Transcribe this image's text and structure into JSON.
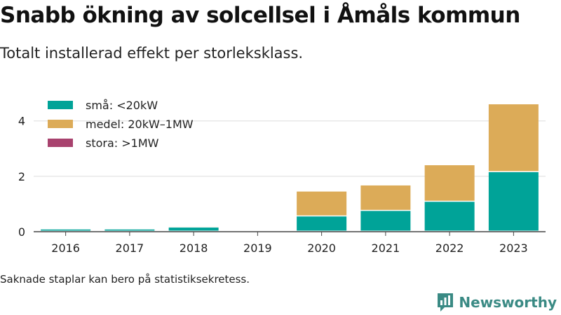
{
  "header": {
    "title": "Snabb ökning av solcellsel i Åmåls kommun",
    "subtitle": "Totalt installerad effekt per storleksklass."
  },
  "footer": {
    "note": "Saknade staplar kan bero på statistiksekretess.",
    "brand": "Newsworthy"
  },
  "chart_data": {
    "type": "bar",
    "stacked": true,
    "categories": [
      "2016",
      "2017",
      "2018",
      "2019",
      "2020",
      "2021",
      "2022",
      "2023"
    ],
    "series": [
      {
        "name": "små: <20kW",
        "color": "#00a398",
        "values": [
          0.08,
          0.08,
          0.15,
          0,
          0.55,
          0.75,
          1.08,
          2.15
        ]
      },
      {
        "name": "medel: 20kW–1MW",
        "color": "#dcab58",
        "values": [
          0,
          0,
          0.04,
          0,
          0.9,
          0.92,
          1.32,
          2.45
        ]
      },
      {
        "name": "stora: >1MW",
        "color": "#a8426e",
        "values": [
          0,
          0,
          0,
          0,
          0,
          0,
          0,
          0
        ]
      }
    ],
    "ylim": [
      0,
      4.6
    ],
    "yticks": [
      0,
      2,
      4
    ],
    "grid": true,
    "legend_position": "top-left"
  }
}
